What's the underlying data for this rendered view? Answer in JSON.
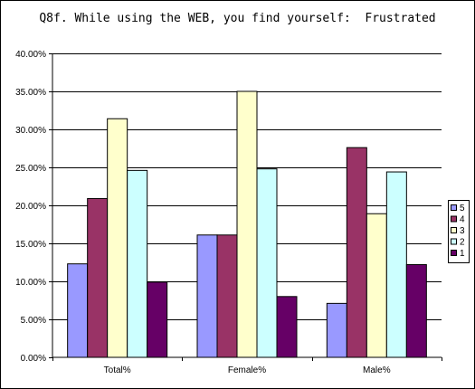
{
  "chart_data": {
    "type": "bar",
    "title": "Q8f. While using the WEB, you find yourself:  Frustrated",
    "categories": [
      "Total%",
      "Female%",
      "Male%"
    ],
    "series": [
      {
        "name": "5",
        "color": "#9999ff",
        "values": [
          12.3,
          16.1,
          7.1
        ]
      },
      {
        "name": "4",
        "color": "#993366",
        "values": [
          20.9,
          16.1,
          27.6
        ]
      },
      {
        "name": "3",
        "color": "#ffffcc",
        "values": [
          31.4,
          35.0,
          18.9
        ]
      },
      {
        "name": "2",
        "color": "#ccffff",
        "values": [
          24.6,
          24.8,
          24.4
        ]
      },
      {
        "name": "1",
        "color": "#660066",
        "values": [
          9.9,
          8.0,
          12.2
        ]
      }
    ],
    "ylim": [
      0,
      40
    ],
    "yticks": [
      "0.00%",
      "5.00%",
      "10.00%",
      "15.00%",
      "20.00%",
      "25.00%",
      "30.00%",
      "35.00%",
      "40.00%"
    ],
    "grid": true,
    "legend_position": "right"
  }
}
